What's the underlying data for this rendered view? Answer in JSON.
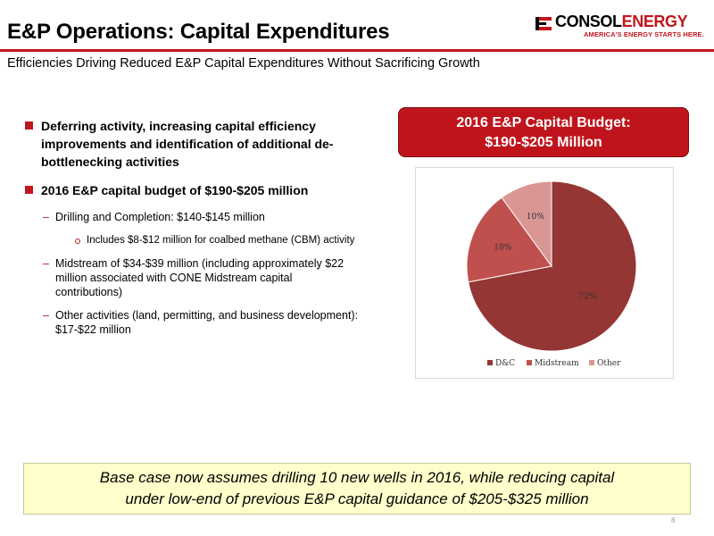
{
  "slide": {
    "title": "E&P Operations: Capital Expenditures",
    "subtitle": "Efficiencies Driving Reduced E&P Capital Expenditures Without Sacrificing Growth",
    "page_number": "8"
  },
  "logo": {
    "name_part1": "CONSOL",
    "name_part2": "ENERGY",
    "tagline": "AMERICA'S ENERGY STARTS HERE."
  },
  "bullets": {
    "b1_line1": "Deferring activity, increasing capital efficiency",
    "b1_line2": "improvements and identification of additional de-",
    "b1_line3": "bottlenecking activities",
    "b2": "2016 E&P capital budget of $190-$205 million",
    "s1": "Drilling and Completion: $140-$145 million",
    "s1a": "Includes $8-$12 million for coalbed methane (CBM) activity",
    "s2_line1": "Midstream of $34-$39 million (including approximately $22",
    "s2_line2": "million associated with CONE Midstream capital",
    "s2_line3": "contributions)",
    "s3_line1": "Other activities (land, permitting, and business development):",
    "s3_line2": "$17-$22 million"
  },
  "budget_box": {
    "line1": "2016 E&P Capital Budget:",
    "line2": "$190-$205 Million"
  },
  "bottom_box": {
    "line1": "Base case now assumes drilling 10 new wells in 2016, while reducing capital",
    "line2": "under low-end of previous E&P capital guidance of $205-$325 million"
  },
  "colors": {
    "accent": "#c0171e",
    "slice_dc": "#943634",
    "slice_midstream": "#c0504d",
    "slice_other": "#d99694"
  },
  "chart_data": {
    "type": "pie",
    "categories": [
      "D&C",
      "Midstream",
      "Other"
    ],
    "values": [
      72,
      18,
      10
    ],
    "labels": [
      "72%",
      "18%",
      "10%"
    ],
    "legend_position": "bottom"
  }
}
